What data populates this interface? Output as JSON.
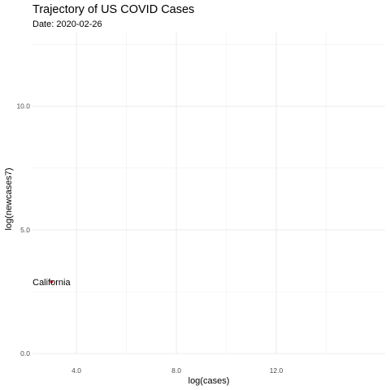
{
  "chart_data": {
    "type": "scatter",
    "title": "Trajectory of US COVID Cases",
    "subtitle": "Date: 2020-02-26",
    "xlabel": "log(cases)",
    "ylabel": "log(newcases7)",
    "xlim": [
      2.24,
      16.36
    ],
    "ylim": [
      -0.03,
      12.98
    ],
    "xticks": [
      4.0,
      8.0,
      12.0
    ],
    "xtick_labels": [
      "4.0",
      "8.0",
      "12.0"
    ],
    "yticks": [
      0.0,
      5.0,
      10.0
    ],
    "ytick_labels": [
      "0.0",
      "5.0",
      "10.0"
    ],
    "grid": true,
    "points": [
      {
        "label": "California",
        "x": 3.0,
        "y": 2.9,
        "color": "#d62728"
      }
    ]
  }
}
